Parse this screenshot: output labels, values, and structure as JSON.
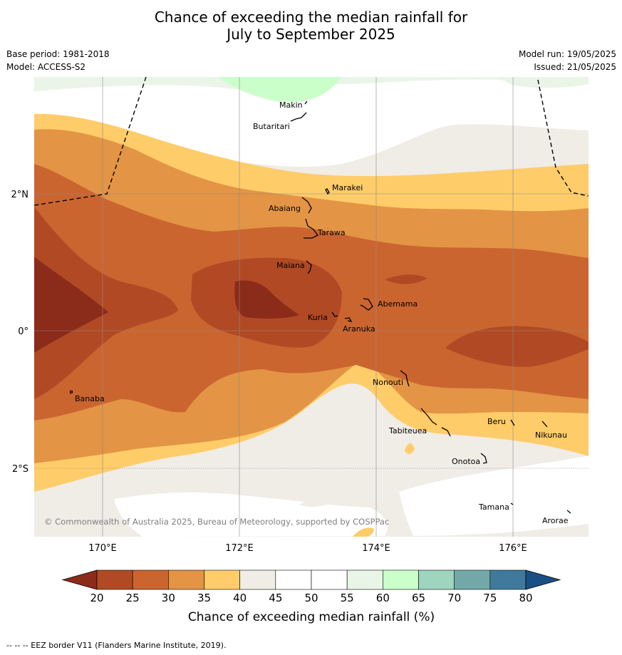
{
  "title_line1": "Chance of exceeding the median rainfall for",
  "title_line2": "July to September 2025",
  "base_period": "Base period: 1981-2018",
  "model": "Model: ACCESS-S2",
  "model_run": "Model run: 19/05/2025",
  "issued": "Issued: 21/05/2025",
  "copyright": "© Commonwealth of Australia 2025, Bureau of Meteorology, supported by COSPPac",
  "lon_labels": [
    "170°E",
    "172°E",
    "174°E",
    "176°E"
  ],
  "lat_labels": [
    "2°N",
    "0°",
    "2°S"
  ],
  "places": [
    "Makin",
    "Butaritari",
    "Marakei",
    "Abaiang",
    "Tarawa",
    "Maiana",
    "Abemama",
    "Kuria",
    "Aranuka",
    "Nonouti",
    "Banaba",
    "Tabiteuea",
    "Beru",
    "Nikunau",
    "Onotoa",
    "Tamana",
    "Arorae"
  ],
  "colorbar": {
    "ticks": [
      "20",
      "25",
      "30",
      "35",
      "40",
      "45",
      "50",
      "55",
      "60",
      "65",
      "70",
      "75",
      "80"
    ],
    "colors": [
      "#8b2b1a",
      "#b14a24",
      "#cb6530",
      "#e39445",
      "#fecc69",
      "#f0ece6",
      "#ffffff",
      "#ffffff",
      "#e9f5e6",
      "#caffca",
      "#9fd4bf",
      "#73a8a8",
      "#3f7a9c",
      "#1a4f85"
    ],
    "label": "Chance of exceeding median rainfall (%)"
  },
  "footer": "--  --  -- EEZ border V11 (Flanders Marine Institute, 2019)."
}
